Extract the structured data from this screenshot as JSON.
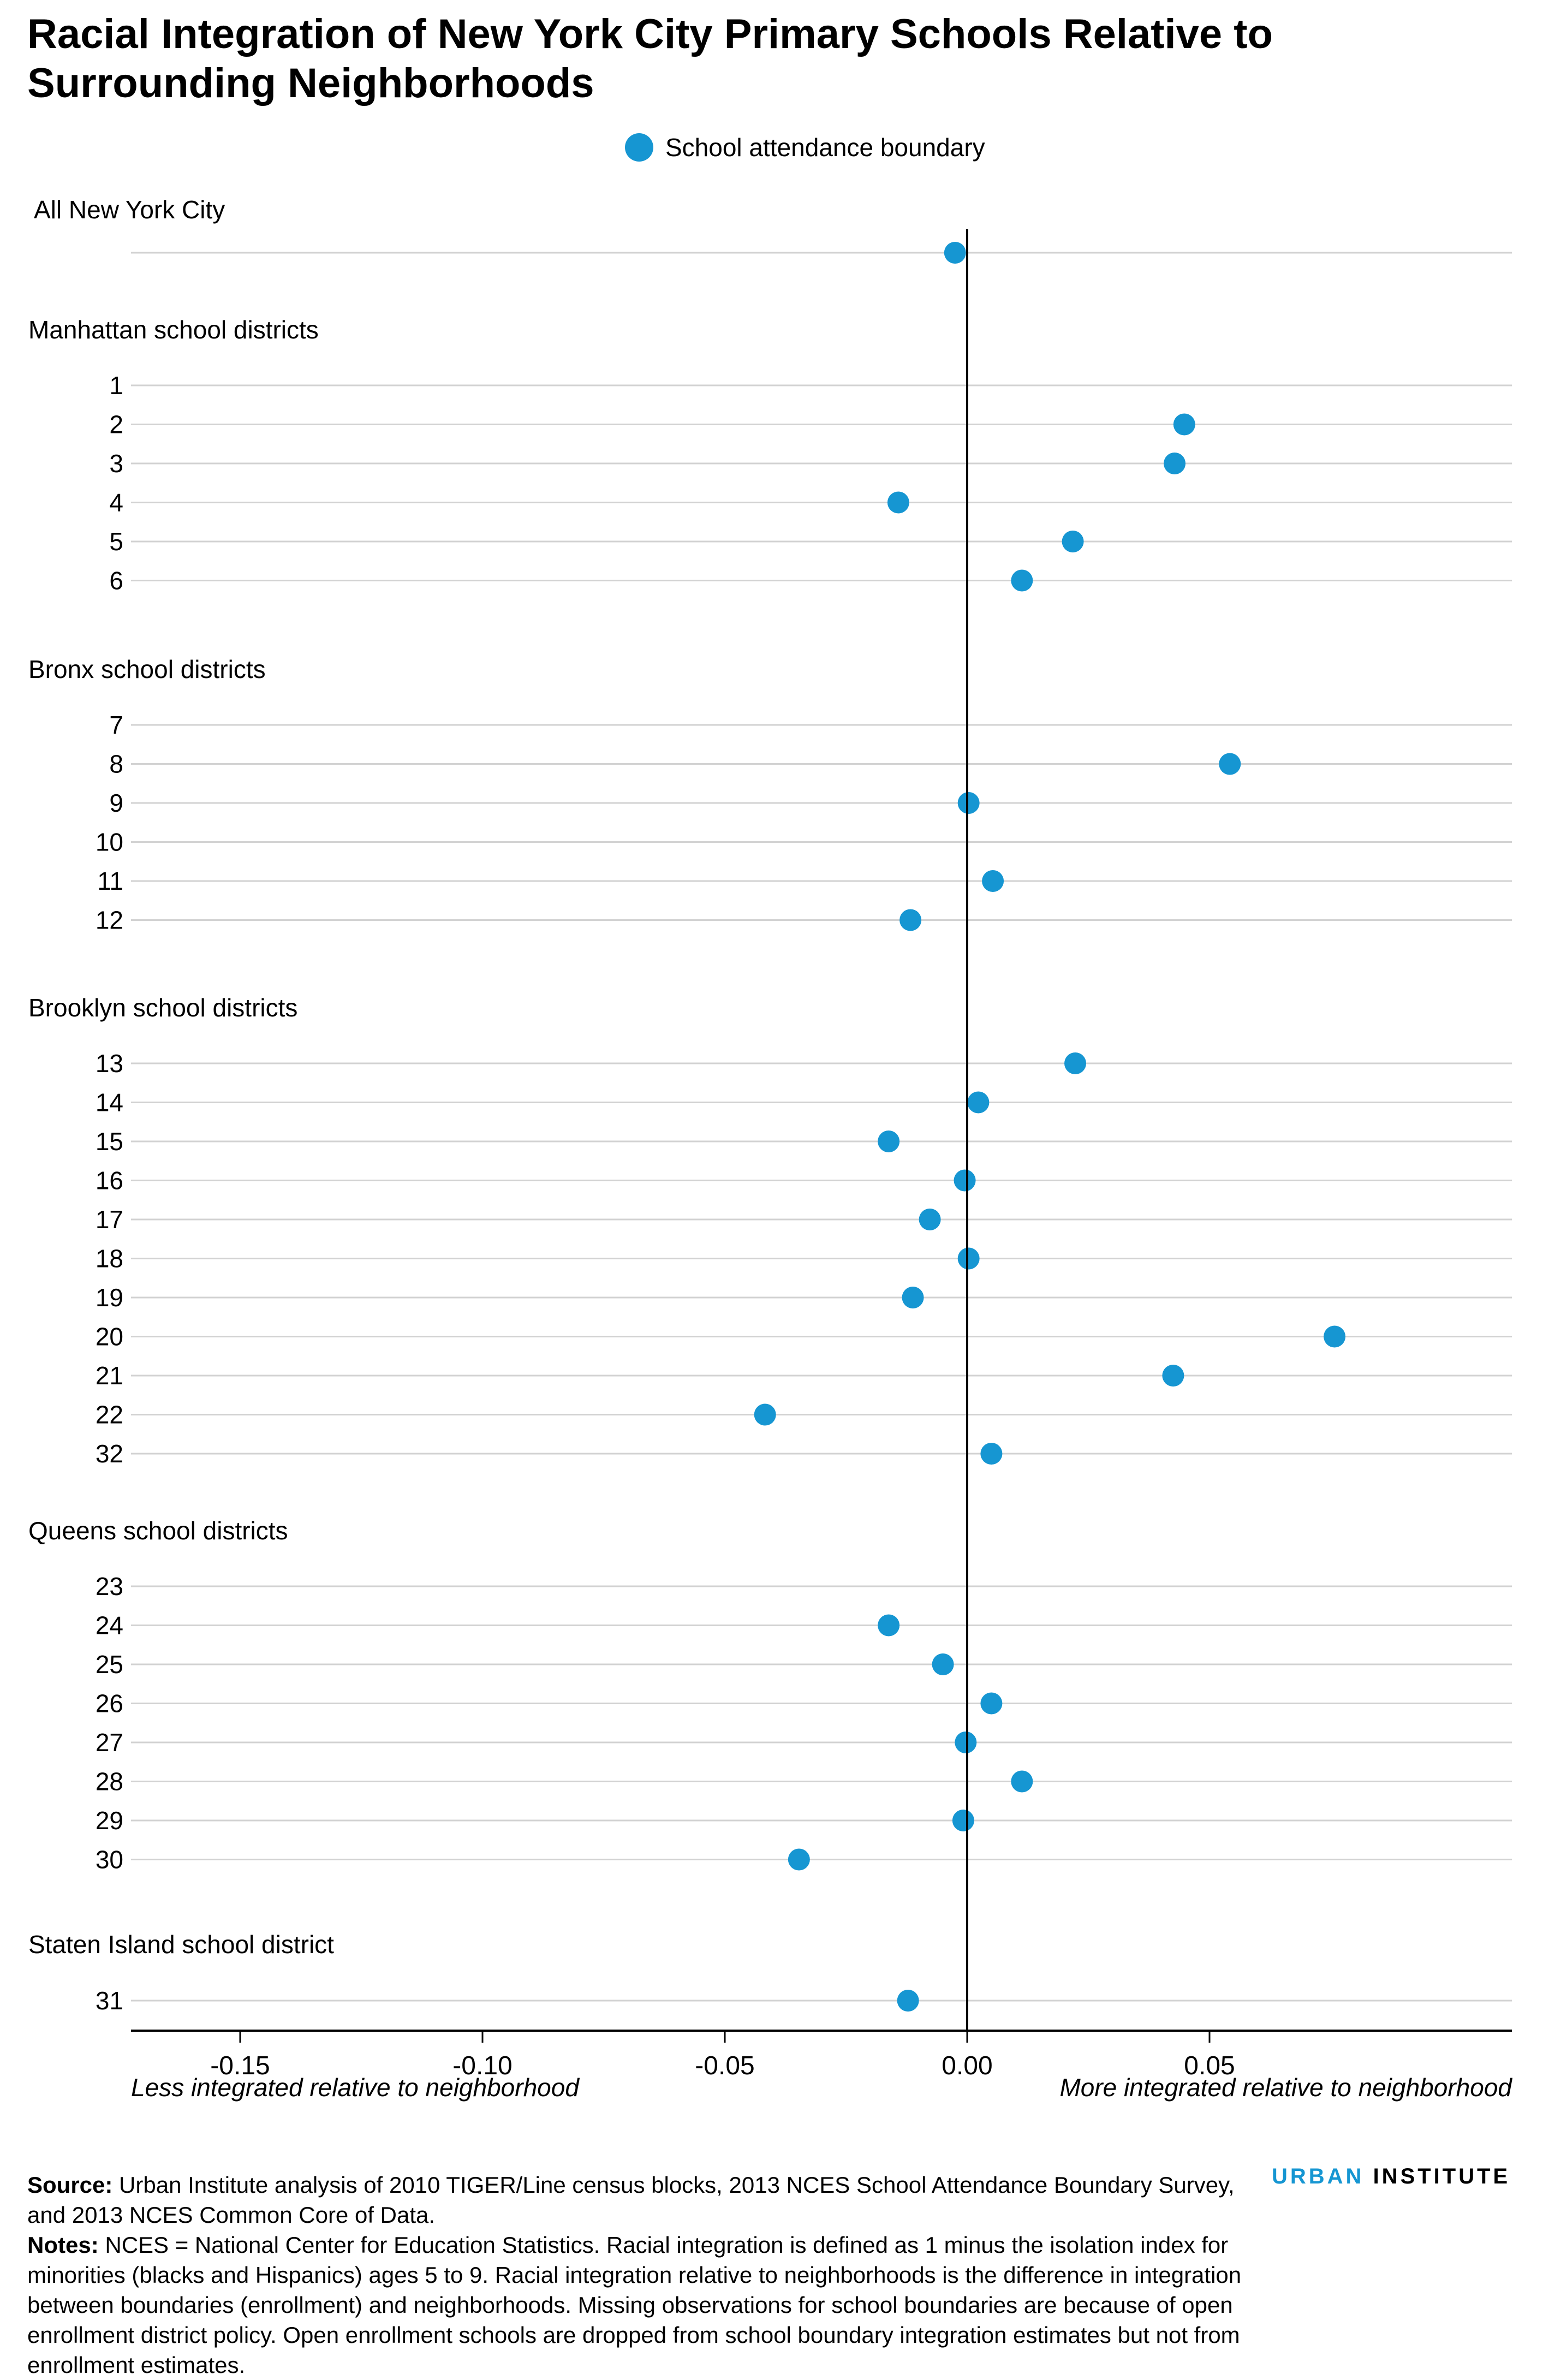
{
  "title": "Racial Integration of New York City Primary Schools Relative to Surrounding Neighborhoods",
  "legend": {
    "label": "School attendance boundary",
    "color": "#1696d2"
  },
  "chart_data": {
    "type": "scatter",
    "series": [
      {
        "name": "School attendance boundary",
        "color": "#1696d2"
      }
    ],
    "x_ticks": [
      -0.15,
      -0.1,
      -0.05,
      0.0,
      0.05
    ],
    "x_tick_labels": [
      "-0.15",
      "-0.10",
      "-0.05",
      "0.00",
      "0.05"
    ],
    "xlim": [
      -0.172,
      0.112
    ],
    "left_annotation": "Less integrated relative to neighborhood",
    "right_annotation": "More integrated relative to neighborhood",
    "groups": [
      {
        "label": "All New York City",
        "rows": [
          {
            "label": "",
            "value": -0.0025
          }
        ]
      },
      {
        "label": "Manhattan school districts",
        "rows": [
          {
            "label": "1",
            "value": null
          },
          {
            "label": "2",
            "value": 0.0448
          },
          {
            "label": "3",
            "value": 0.0428
          },
          {
            "label": "4",
            "value": -0.0142
          },
          {
            "label": "5",
            "value": 0.0218
          },
          {
            "label": "6",
            "value": 0.0113
          }
        ]
      },
      {
        "label": "Bronx school districts",
        "rows": [
          {
            "label": "7",
            "value": null
          },
          {
            "label": "8",
            "value": 0.0542
          },
          {
            "label": "9",
            "value": 0.0003
          },
          {
            "label": "10",
            "value": null
          },
          {
            "label": "11",
            "value": 0.0053
          },
          {
            "label": "12",
            "value": -0.0117
          }
        ]
      },
      {
        "label": "Brooklyn school districts",
        "rows": [
          {
            "label": "13",
            "value": 0.0223
          },
          {
            "label": "14",
            "value": 0.0023
          },
          {
            "label": "15",
            "value": -0.0162
          },
          {
            "label": "16",
            "value": -0.0005
          },
          {
            "label": "17",
            "value": -0.0077
          },
          {
            "label": "18",
            "value": 0.0003
          },
          {
            "label": "19",
            "value": -0.0112
          },
          {
            "label": "20",
            "value": 0.0758
          },
          {
            "label": "21",
            "value": 0.0425
          },
          {
            "label": "22",
            "value": -0.0417
          },
          {
            "label": "32",
            "value": 0.005
          }
        ]
      },
      {
        "label": "Queens school districts",
        "rows": [
          {
            "label": "23",
            "value": null
          },
          {
            "label": "24",
            "value": -0.0162
          },
          {
            "label": "25",
            "value": -0.005
          },
          {
            "label": "26",
            "value": 0.005
          },
          {
            "label": "27",
            "value": -0.0003
          },
          {
            "label": "28",
            "value": 0.0113
          },
          {
            "label": "29",
            "value": -0.0008
          },
          {
            "label": "30",
            "value": -0.0347
          }
        ]
      },
      {
        "label": "Staten Island school district",
        "rows": [
          {
            "label": "31",
            "value": -0.0122
          }
        ]
      }
    ]
  },
  "footer": {
    "source_label": "Source:",
    "source_text": "Urban Institute analysis of 2010 TIGER/Line census blocks, 2013 NCES School Attendance Boundary Survey, and 2013 NCES Common Core of Data.",
    "notes_label": "Notes:",
    "notes_text": "NCES = National Center for Education Statistics. Racial integration is defined as 1 minus the isolation index for minorities (blacks and Hispanics) ages 5 to 9. Racial integration relative to neighborhoods is the difference in integration between boundaries (enrollment) and neighborhoods. Missing observations for school boundaries are because of open enrollment district policy. Open enrollment schools are dropped from school boundary integration estimates but not from enrollment estimates."
  },
  "brand": {
    "part1": "URBAN",
    "part2": "INSTITUTE"
  }
}
